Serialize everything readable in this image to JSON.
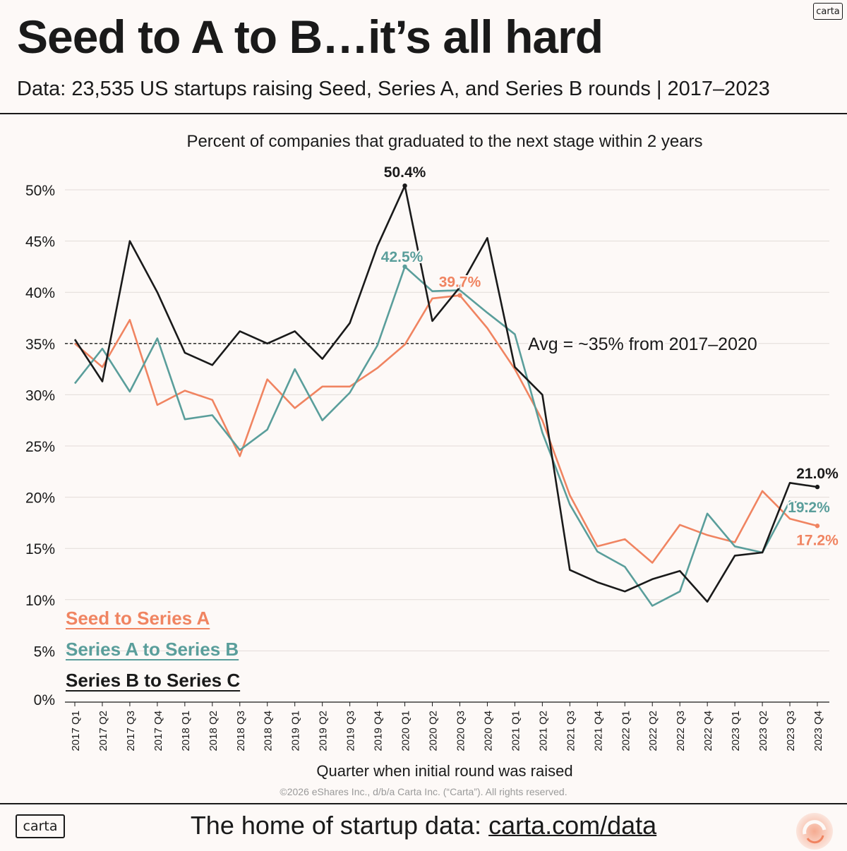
{
  "header": {
    "logo": "carta",
    "title": "Seed to A to B…it’s all hard",
    "subtitle": "Data: 23,535 US startups raising Seed, Series A, and Series B rounds | 2017–2023"
  },
  "chart_data": {
    "type": "line",
    "title": "Percent of companies that graduated to the next stage within 2 years",
    "xlabel": "Quarter when initial round was raised",
    "ylabel": "",
    "ylim": [
      0,
      52
    ],
    "y_ticks": [
      0,
      5,
      10,
      15,
      20,
      25,
      30,
      35,
      40,
      45,
      50
    ],
    "y_tick_labels": [
      "0%",
      "5%",
      "10%",
      "15%",
      "20%",
      "25%",
      "30%",
      "35%",
      "40%",
      "45%",
      "50%"
    ],
    "grid": true,
    "categories": [
      "2017 Q1",
      "2017 Q2",
      "2017 Q3",
      "2017 Q4",
      "2018 Q1",
      "2018 Q2",
      "2018 Q3",
      "2018 Q4",
      "2019 Q1",
      "2019 Q2",
      "2019 Q3",
      "2019 Q4",
      "2020 Q1",
      "2020 Q2",
      "2020 Q3",
      "2020 Q4",
      "2021 Q1",
      "2021 Q2",
      "2021 Q3",
      "2021 Q4",
      "2022 Q1",
      "2022 Q2",
      "2022 Q3",
      "2022 Q4",
      "2023 Q1",
      "2023 Q2",
      "2023 Q3",
      "2023 Q4"
    ],
    "series": [
      {
        "name": "Seed to Series A",
        "color": "#f08461",
        "values": [
          35.0,
          32.7,
          37.3,
          29.0,
          30.4,
          29.5,
          24.0,
          31.5,
          28.7,
          30.8,
          30.8,
          32.6,
          34.9,
          39.4,
          39.7,
          36.5,
          32.5,
          27.5,
          20.2,
          15.2,
          15.9,
          13.6,
          17.3,
          16.3,
          15.6,
          20.6,
          17.9,
          17.2
        ],
        "labels": [
          {
            "index": 14,
            "text": "39.7%",
            "pos": "above"
          },
          {
            "index": 27,
            "text": "17.2%",
            "pos": "below"
          }
        ]
      },
      {
        "name": "Series A to Series B",
        "color": "#5a9e9b",
        "values": [
          31.1,
          34.5,
          30.3,
          35.5,
          27.6,
          28.0,
          24.6,
          26.6,
          32.5,
          27.5,
          30.2,
          34.8,
          42.5,
          40.1,
          40.2,
          38.0,
          35.9,
          26.3,
          19.3,
          14.7,
          13.2,
          9.4,
          10.8,
          18.4,
          15.2,
          14.6,
          19.6,
          19.2
        ],
        "labels": [
          {
            "index": 12,
            "text": "42.5%",
            "pos": "left-above"
          },
          {
            "index": 27,
            "text": "19.2%",
            "pos": "below-left"
          }
        ]
      },
      {
        "name": "Series B to Series C",
        "color": "#1a1a1a",
        "values": [
          35.4,
          31.3,
          45.0,
          40.0,
          34.1,
          32.9,
          36.2,
          35.0,
          36.2,
          33.5,
          37.0,
          44.5,
          50.4,
          37.2,
          40.5,
          45.3,
          32.7,
          30.0,
          12.9,
          11.7,
          10.8,
          12.0,
          12.8,
          9.8,
          14.3,
          14.6,
          21.4,
          21.0
        ],
        "labels": [
          {
            "index": 12,
            "text": "50.4%",
            "pos": "above"
          },
          {
            "index": 27,
            "text": "21.0%",
            "pos": "above"
          }
        ]
      }
    ],
    "reference_line": {
      "value": 35,
      "label": "Avg = ~35% from 2017–2020",
      "end_index": 15
    }
  },
  "footer": {
    "copyright": "©2026 eShares Inc., d/b/a Carta Inc. (“Carta”). All rights reserved.",
    "logo": "carta",
    "tagline": "The home of startup data: ",
    "link": "carta.com/data"
  }
}
